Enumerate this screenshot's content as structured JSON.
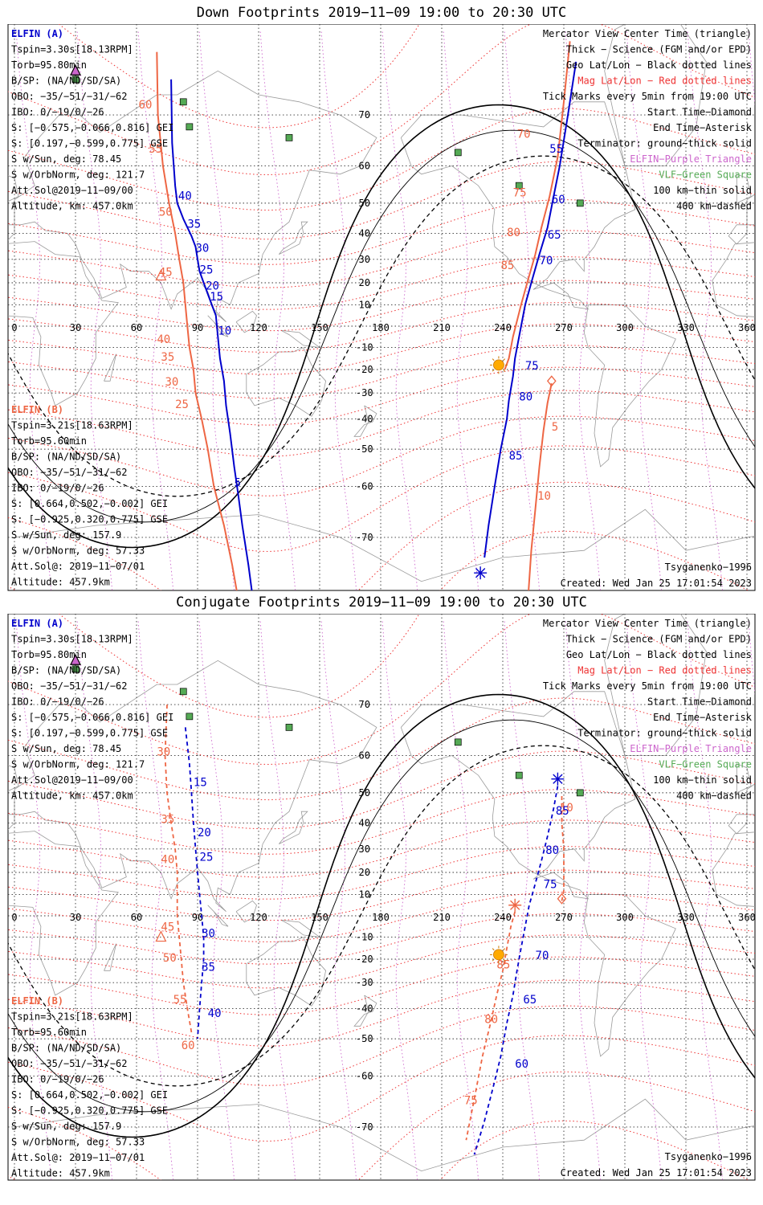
{
  "colors": {
    "elfin_a": "#0000cc",
    "elfin_b": "#ee6644",
    "mag_grid": "#ee3333",
    "geo_grid": "#333333",
    "purple": "#cc66cc",
    "vlf_green": "#55aa55",
    "sun": "#ffaa00",
    "coast": "#9a9a9a"
  },
  "icons": {
    "start": "diamond-icon",
    "end": "asterisk-icon",
    "center": "triangle-icon",
    "vlf": "green-square-icon",
    "sun": "sun-icon"
  },
  "panels": [
    {
      "title": "Down Footprints 2019−11−09 19:00 to 20:30 UTC",
      "mode": "down",
      "info_a": [
        "ELFIN (A)",
        "Tspin=3.30s[18.13RPM]",
        "Torb=95.80min",
        "B/SP: (NA/ND/SD/SA)",
        "OBO: −35/−51/−31/−62",
        "IBO: 0/−19/0/−26",
        "S: [−0.575,−0.066,0.816] GEI",
        "S: [0.197,−0.599,0.775] GSE",
        "S w/Sun, deg: 78.45",
        "S w/OrbNorm, deg: 121.7",
        "Att.Sol@2019−11−09/00",
        "Altitude, km: 457.0km"
      ],
      "info_b": [
        "ELFIN (B)",
        "Tspin=3.21s[18.63RPM]",
        "Torb=95.60min",
        "B/SP: (NA/ND/SD/SA)",
        "OBO: −35/−51/−31/−62",
        "IBO: 0/−19/0/−26",
        "S: [0.664,0.502,−0.002] GEI",
        "S: [−0.925,0.320,0.775] GSE",
        "S w/Sun, deg: 157.9",
        "S w/OrbNorm, deg: 57.33",
        "Att.Sol@: 2019−11−07/01",
        "Altitude: 457.9km"
      ],
      "legend": [
        "Mercator View Center Time (triangle)",
        "Thick − Science (FGM and/or EPD)",
        "Geo Lat/Lon − Black dotted lines",
        "Mag Lat/Lon − Red dotted lines",
        "Tick Marks every 5min from 19:00 UTC",
        "Start Time−Diamond",
        "End Time−Asterisk",
        "Terminator: ground−thick solid",
        "ELFIN−Purple Triangle",
        "VLF−Green Square",
        "100 km−thin solid",
        "400 km−dashed"
      ],
      "model": "Tsyganenko−1996",
      "created": "Created: Wed Jan 25 17:01:54 2023",
      "track_a": [
        [
          77,
          75
        ],
        [
          77.5,
          65
        ],
        [
          79,
          55
        ],
        [
          80,
          50
        ],
        [
          83,
          45
        ],
        [
          87,
          39
        ],
        [
          89,
          35
        ],
        [
          90,
          30
        ],
        [
          91,
          25
        ],
        [
          93,
          20
        ],
        [
          95,
          15
        ],
        [
          97,
          10
        ],
        [
          99,
          5
        ],
        [
          100,
          -5
        ],
        [
          101,
          -15
        ],
        [
          103,
          -25
        ],
        [
          104,
          -35
        ],
        [
          106,
          -45
        ],
        [
          108,
          -55
        ],
        [
          110,
          -62
        ],
        [
          112,
          -68
        ],
        [
          115,
          -74
        ],
        [
          118,
          -79
        ]
      ],
      "ticks_a": [
        {
          "label": "40",
          "lon": 80.5,
          "lat": 51
        },
        {
          "label": "35",
          "lon": 85,
          "lat": 42
        },
        {
          "label": "30",
          "lon": 89,
          "lat": 33
        },
        {
          "label": "25",
          "lon": 91,
          "lat": 24
        },
        {
          "label": "20",
          "lon": 94,
          "lat": 17
        },
        {
          "label": "15",
          "lon": 96,
          "lat": 12
        },
        {
          "label": "10",
          "lon": 100,
          "lat": -4
        },
        {
          "label": "5",
          "lon": 108,
          "lat": -60
        }
      ],
      "track_b": [
        [
          70,
          78
        ],
        [
          70.5,
          70
        ],
        [
          73,
          60
        ],
        [
          76,
          50
        ],
        [
          79,
          40
        ],
        [
          81,
          30
        ],
        [
          83,
          20
        ],
        [
          84,
          10
        ],
        [
          85,
          0
        ],
        [
          86,
          -10
        ],
        [
          88,
          -20
        ],
        [
          89,
          -30
        ],
        [
          92,
          -40
        ],
        [
          95,
          -50
        ],
        [
          98,
          -60
        ],
        [
          103,
          -68
        ],
        [
          107,
          -74
        ],
        [
          111,
          -79
        ]
      ],
      "ticks_b": [
        {
          "label": "60",
          "lon": 61,
          "lat": 71
        },
        {
          "label": "55",
          "lon": 66,
          "lat": 63
        },
        {
          "label": "50",
          "lon": 71,
          "lat": 46
        },
        {
          "label": "45",
          "lon": 71,
          "lat": 23
        },
        {
          "label": "40",
          "lon": 70,
          "lat": -8
        },
        {
          "label": "35",
          "lon": 72,
          "lat": -16
        },
        {
          "label": "30",
          "lon": 74,
          "lat": -27
        },
        {
          "label": "25",
          "lon": 79,
          "lat": -36
        }
      ],
      "track_a2": [
        [
          276,
          77
        ],
        [
          272,
          70
        ],
        [
          268,
          60
        ],
        [
          265,
          52
        ],
        [
          262,
          42
        ],
        [
          258,
          32
        ],
        [
          254,
          20
        ],
        [
          251,
          10
        ],
        [
          248,
          -5
        ],
        [
          246,
          -15
        ],
        [
          245,
          -23
        ],
        [
          243,
          -33
        ],
        [
          242,
          -40
        ],
        [
          239,
          -50
        ],
        [
          236,
          -60
        ],
        [
          233,
          -68
        ],
        [
          231,
          -73
        ]
      ],
      "ticks_a2": [
        {
          "label": "55",
          "lon": 263,
          "lat": 63
        },
        {
          "label": "60",
          "lon": 264,
          "lat": 50
        },
        {
          "label": "65",
          "lon": 262,
          "lat": 38
        },
        {
          "label": "70",
          "lon": 258,
          "lat": 28
        },
        {
          "label": "75",
          "lon": 251,
          "lat": -20
        },
        {
          "label": "80",
          "lon": 248,
          "lat": -33
        },
        {
          "label": "85",
          "lon": 243,
          "lat": -53
        }
      ],
      "track_b2": [
        [
          273,
          79
        ],
        [
          270,
          72
        ],
        [
          267,
          62
        ],
        [
          263,
          52
        ],
        [
          259,
          42
        ],
        [
          256,
          32
        ],
        [
          252,
          20
        ],
        [
          249,
          10
        ],
        [
          245,
          -5
        ],
        [
          243,
          -15
        ],
        [
          241,
          -20
        ]
      ],
      "ticks_b2": [
        {
          "label": "70",
          "lon": 247,
          "lat": 66
        },
        {
          "label": "75",
          "lon": 245,
          "lat": 52
        },
        {
          "label": "80",
          "lon": 242,
          "lat": 39
        },
        {
          "label": "85",
          "lon": 239,
          "lat": 26
        }
      ],
      "track_b3": [
        [
          264,
          -26
        ],
        [
          262,
          -34
        ],
        [
          260,
          -44
        ],
        [
          258,
          -55
        ],
        [
          256,
          -65
        ],
        [
          254,
          -72
        ],
        [
          252,
          -79
        ]
      ],
      "ticks_b3": [
        {
          "label": "5",
          "lon": 264,
          "lat": -44
        },
        {
          "label": "10",
          "lon": 257,
          "lat": -63
        }
      ],
      "sun": {
        "lon": 238,
        "lat": -18
      },
      "start_b": {
        "lon": 264,
        "lat": -25
      },
      "end_a": {
        "lon": 229,
        "lat": -75
      },
      "triangle_b": {
        "lon": 72,
        "lat": 23
      },
      "triangle_a": {
        "lon": 30,
        "lat": 76
      }
    },
    {
      "title": "Conjugate Footprints 2019−11−09 19:00 to 20:30 UTC",
      "mode": "conjugate",
      "info_a": [
        "ELFIN (A)",
        "Tspin=3.30s[18.13RPM]",
        "Torb=95.80min",
        "B/SP: (NA/ND/SD/SA)",
        "OBO: −35/−51/−31/−62",
        "IBO: 0/−19/0/−26",
        "S: [−0.575,−0.066,0.816] GEI",
        "S: [0.197,−0.599,0.775] GSE",
        "S w/Sun, deg: 78.45",
        "S w/OrbNorm, deg: 121.7",
        "Att.Sol@2019−11−09/00",
        "Altitude, km: 457.0km"
      ],
      "info_b": [
        "ELFIN (B)",
        "Tspin=3.21s[18.63RPM]",
        "Torb=95.60min",
        "B/SP: (NA/ND/SD/SA)",
        "OBO: −35/−51/−31/−62",
        "IBO: 0/−19/0/−26",
        "S: [0.664,0.502,−0.002] GEI",
        "S: [−0.925,0.320,0.775] GSE",
        "S w/Sun, deg: 157.9",
        "S w/OrbNorm, deg: 57.33",
        "Att.Sol@: 2019−11−07/01",
        "Altitude: 457.9km"
      ],
      "legend": [
        "Mercator View Center Time (triangle)",
        "Thick − Science (FGM and/or EPD)",
        "Geo Lat/Lon − Black dotted lines",
        "Mag Lat/Lon − Red dotted lines",
        "Tick Marks every 5min from 19:00 UTC",
        "Start Time−Diamond",
        "End Time−Asterisk",
        "Terminator: ground−thick solid",
        "ELFIN−Purple Triangle",
        "VLF−Green Square",
        "100 km−thin solid",
        "400 km−dashed"
      ],
      "model": "Tsyganenko−1996",
      "created": "Created: Wed Jan 25 17:01:54 2023",
      "track_a": [
        [
          84,
          66
        ],
        [
          86,
          58
        ],
        [
          87,
          50
        ],
        [
          88,
          40
        ],
        [
          89,
          30
        ],
        [
          90,
          20
        ],
        [
          91,
          10
        ],
        [
          92,
          0
        ],
        [
          93,
          -10
        ],
        [
          93,
          -20
        ],
        [
          92,
          -30
        ],
        [
          91,
          -40
        ],
        [
          90,
          -50
        ]
      ],
      "ticks_a": [
        {
          "label": "15",
          "lon": 88,
          "lat": 52
        },
        {
          "label": "20",
          "lon": 90,
          "lat": 35
        },
        {
          "label": "25",
          "lon": 91,
          "lat": 25
        },
        {
          "label": "30",
          "lon": 92,
          "lat": -10
        },
        {
          "label": "35",
          "lon": 92,
          "lat": -25
        },
        {
          "label": "40",
          "lon": 95,
          "lat": -43
        }
      ],
      "track_b": [
        [
          75,
          70
        ],
        [
          74,
          60
        ],
        [
          75,
          50
        ],
        [
          77,
          40
        ],
        [
          79,
          30
        ],
        [
          80,
          20
        ],
        [
          80,
          10
        ],
        [
          80,
          0
        ],
        [
          81,
          -10
        ],
        [
          82,
          -20
        ],
        [
          83,
          -30
        ],
        [
          85,
          -40
        ],
        [
          87,
          -48
        ]
      ],
      "ticks_b": [
        {
          "label": "30",
          "lon": 70,
          "lat": 60
        },
        {
          "label": "35",
          "lon": 72,
          "lat": 40
        },
        {
          "label": "40",
          "lon": 72,
          "lat": 24
        },
        {
          "label": "45",
          "lon": 72,
          "lat": -7
        },
        {
          "label": "50",
          "lon": 73,
          "lat": -21
        },
        {
          "label": "55",
          "lon": 78,
          "lat": -38
        },
        {
          "label": "60",
          "lon": 82,
          "lat": -53
        }
      ],
      "track_a2": [
        [
          267,
          52
        ],
        [
          265,
          45
        ],
        [
          262,
          35
        ],
        [
          259,
          25
        ],
        [
          256,
          15
        ],
        [
          253,
          5
        ],
        [
          251,
          -5
        ],
        [
          249,
          -15
        ],
        [
          247,
          -25
        ],
        [
          245,
          -35
        ],
        [
          242,
          -45
        ],
        [
          239,
          -55
        ],
        [
          235,
          -63
        ],
        [
          231,
          -69
        ],
        [
          226,
          -74
        ]
      ],
      "ticks_a2": [
        {
          "label": "85",
          "lon": 266,
          "lat": 43
        },
        {
          "label": "80",
          "lon": 261,
          "lat": 28
        },
        {
          "label": "75",
          "lon": 260,
          "lat": 13
        },
        {
          "label": "70",
          "lon": 256,
          "lat": -20
        },
        {
          "label": "65",
          "lon": 250,
          "lat": -38
        },
        {
          "label": "60",
          "lon": 246,
          "lat": -58
        }
      ],
      "track_b2": [
        [
          269,
          49
        ],
        [
          269,
          40
        ],
        [
          270,
          30
        ],
        [
          270,
          20
        ],
        [
          270,
          12
        ],
        [
          269,
          7
        ]
      ],
      "ticks_b2": [
        {
          "label": "10",
          "lon": 268,
          "lat": 44
        }
      ],
      "track_b3": [
        [
          246,
          2
        ],
        [
          244,
          -5
        ],
        [
          242,
          -15
        ],
        [
          240,
          -25
        ],
        [
          237,
          -35
        ],
        [
          234,
          -45
        ],
        [
          230,
          -55
        ],
        [
          226,
          -65
        ],
        [
          222,
          -72
        ]
      ],
      "ticks_b3": [
        {
          "label": "85",
          "lon": 237,
          "lat": -24
        },
        {
          "label": "80",
          "lon": 231,
          "lat": -45
        },
        {
          "label": "75",
          "lon": 221,
          "lat": -66
        }
      ],
      "sun": {
        "lon": 238,
        "lat": -18
      },
      "start_b": {
        "lon": 269,
        "lat": 8
      },
      "end_a": {
        "lon": 267,
        "lat": 54
      },
      "end_b": {
        "lon": 246,
        "lat": 5
      },
      "triangle_b": {
        "lon": 72,
        "lat": -10
      },
      "triangle_a": {
        "lon": 30,
        "lat": 76
      }
    }
  ],
  "lon_labels": [
    "0",
    "30",
    "60",
    "90",
    "120",
    "150",
    "180",
    "210",
    "240",
    "270",
    "300",
    "330",
    "360"
  ],
  "lat_labels": [
    "70",
    "60",
    "50",
    "40",
    "30",
    "20",
    "10",
    "-10",
    "-20",
    "-30",
    "-40",
    "-50",
    "-60",
    "-70"
  ]
}
